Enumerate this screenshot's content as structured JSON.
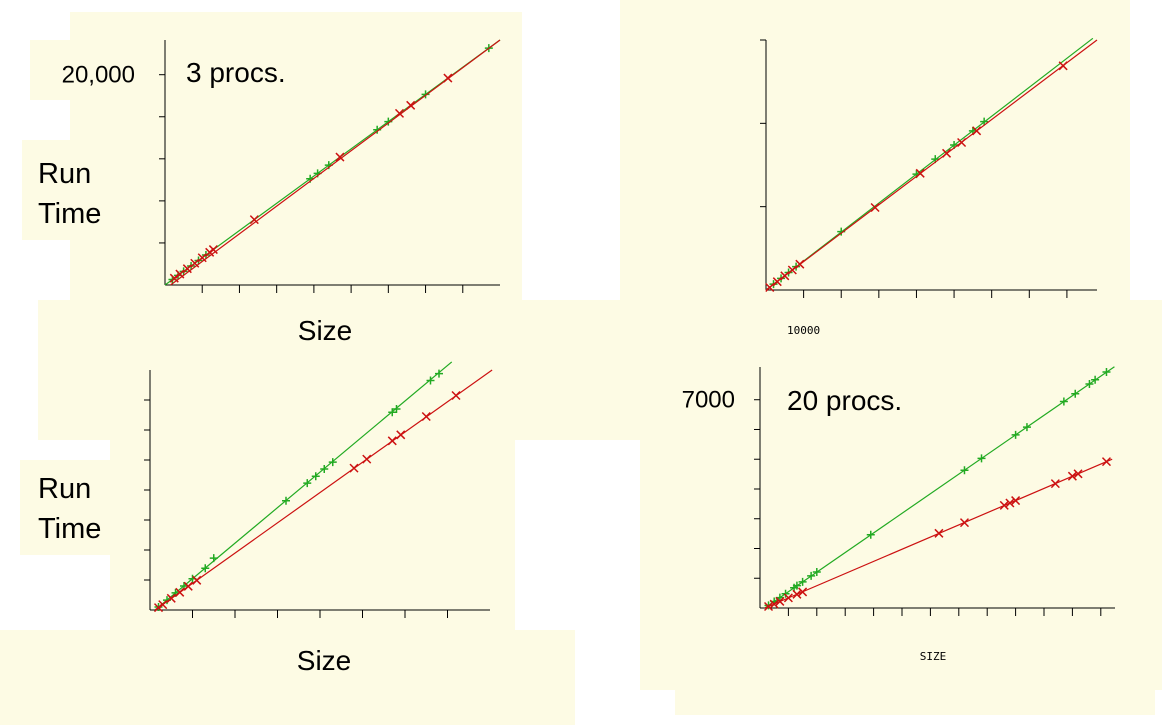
{
  "chart_data": [
    {
      "type": "scatter",
      "title": "3 procs.",
      "ylabel": "Run Time",
      "xlabel": "Size",
      "xlim": [
        0,
        9
      ],
      "ylim": [
        0,
        23300
      ],
      "xticks": [
        1,
        2,
        3,
        4,
        5,
        6,
        7,
        8
      ],
      "yticks": [
        4000,
        8000,
        12000,
        16000,
        {
          "value": 20000,
          "label": "20,000"
        }
      ],
      "series": [
        {
          "color": "#22aa22",
          "marker": "+",
          "x": [
            0.2,
            0.35,
            0.5,
            0.7,
            0.9,
            1.1,
            3.9,
            4.1,
            4.4,
            5.7,
            6.0,
            7.0,
            8.7
          ],
          "values": [
            520,
            910,
            1300,
            1810,
            2330,
            2850,
            10100,
            10620,
            11400,
            14760,
            15540,
            18130,
            22530
          ],
          "fit": {
            "x": [
              0,
              9
            ],
            "y": [
              0,
              23300
            ]
          }
        },
        {
          "color": "#cc1111",
          "marker": "x",
          "x": [
            0.25,
            0.4,
            0.6,
            0.8,
            1.0,
            1.2,
            1.3,
            2.4,
            4.7,
            6.3,
            6.6,
            7.6
          ],
          "values": [
            650,
            1040,
            1550,
            2070,
            2590,
            3110,
            3370,
            6220,
            12170,
            16320,
            17090,
            19680
          ],
          "fit": {
            "x": [
              0.15,
              9
            ],
            "y": [
              0,
              23300
            ]
          }
        }
      ]
    },
    {
      "type": "scatter",
      "xlim": [
        0,
        88000
      ],
      "ylim": [
        0,
        300
      ],
      "xticks": [
        {
          "value": 10000,
          "label": "10000"
        },
        20000,
        30000,
        40000,
        50000,
        60000,
        70000,
        80000
      ],
      "yticks": [
        100,
        200,
        300
      ],
      "series": [
        {
          "color": "#22aa22",
          "marker": "+",
          "x": [
            2000,
            4000,
            6000,
            8000,
            20000,
            40000,
            45000,
            50000,
            55000,
            58000
          ],
          "values": [
            7,
            14,
            21,
            28,
            70,
            139,
            157,
            174,
            191,
            202
          ],
          "fit": {
            "x": [
              0,
              86900
            ],
            "y": [
              0,
              302
            ]
          }
        },
        {
          "color": "#cc1111",
          "marker": "x",
          "x": [
            1000,
            3000,
            5000,
            7000,
            9000,
            29000,
            41000,
            48000,
            52000,
            56000,
            79000
          ],
          "values": [
            3,
            10,
            17,
            24,
            31,
            99,
            140,
            164,
            177,
            191,
            269
          ],
          "fit": {
            "x": [
              0,
              88000
            ],
            "y": [
              0,
              300
            ]
          }
        }
      ]
    },
    {
      "type": "scatter",
      "ylabel": "Run Time",
      "xlabel": "Size",
      "xlim": [
        0,
        8
      ],
      "ylim": [
        0,
        8
      ],
      "xticks": [
        1,
        2,
        3,
        4,
        5,
        6,
        7
      ],
      "yticks": [
        1,
        2,
        3,
        4,
        5,
        6,
        7
      ],
      "series": [
        {
          "color": "#22aa22",
          "marker": "+",
          "x": [
            0.2,
            0.4,
            0.6,
            0.8,
            1.0,
            1.3,
            1.5,
            3.2,
            3.7,
            3.9,
            4.1,
            4.3,
            5.7,
            5.8,
            6.6,
            6.8
          ],
          "values": [
            0.1,
            0.33,
            0.57,
            0.8,
            1.04,
            1.39,
            1.73,
            3.64,
            4.23,
            4.46,
            4.7,
            4.93,
            6.59,
            6.7,
            7.65,
            7.88
          ],
          "fit": {
            "x": [
              0.12,
              7.1
            ],
            "y": [
              0,
              8.27
            ]
          }
        },
        {
          "color": "#cc1111",
          "marker": "x",
          "x": [
            0.2,
            0.3,
            0.5,
            0.7,
            0.9,
            1.1,
            4.8,
            5.1,
            5.7,
            5.9,
            6.5,
            7.2
          ],
          "values": [
            0.08,
            0.18,
            0.39,
            0.59,
            0.79,
            0.99,
            4.73,
            5.03,
            5.64,
            5.84,
            6.45,
            7.15
          ],
          "fit": {
            "x": [
              0.12,
              8.05
            ],
            "y": [
              0,
              8
            ]
          }
        }
      ]
    },
    {
      "type": "scatter",
      "title": "20 procs.",
      "xlabel": "SIZE",
      "xlim": [
        0,
        12.5
      ],
      "ylim": [
        0,
        8100
      ],
      "xticks": [
        1,
        2,
        3,
        4,
        5,
        6,
        7,
        8,
        9,
        10,
        11,
        12
      ],
      "yticks": [
        1000,
        2000,
        3000,
        4000,
        5000,
        6000,
        {
          "value": 7000,
          "label": "7000"
        }
      ],
      "series": [
        {
          "color": "#22aa22",
          "marker": "+",
          "x": [
            0.3,
            0.5,
            0.7,
            0.9,
            1.2,
            1.3,
            1.5,
            1.8,
            2.0,
            3.9,
            7.2,
            7.8,
            9.0,
            9.4,
            10.7,
            11.1,
            11.6,
            11.8,
            12.2
          ],
          "values": [
            90,
            220,
            350,
            480,
            680,
            750,
            880,
            1080,
            1210,
            2460,
            4630,
            5030,
            5820,
            6080,
            6940,
            7200,
            7530,
            7670,
            7930
          ],
          "fit": {
            "x": [
              0.17,
              12.48
            ],
            "y": [
              0,
              8110
            ]
          }
        },
        {
          "color": "#cc1111",
          "marker": "x",
          "x": [
            0.3,
            0.5,
            0.7,
            1.0,
            1.3,
            1.5,
            6.3,
            7.2,
            8.6,
            8.8,
            9.0,
            10.4,
            11.0,
            11.2,
            12.2
          ],
          "values": [
            50,
            130,
            220,
            340,
            460,
            540,
            2510,
            2870,
            3450,
            3530,
            3610,
            4180,
            4430,
            4510,
            4920
          ],
          "fit": {
            "x": [
              0.17,
              12.4
            ],
            "y": [
              0,
              5000
            ]
          }
        }
      ]
    }
  ]
}
